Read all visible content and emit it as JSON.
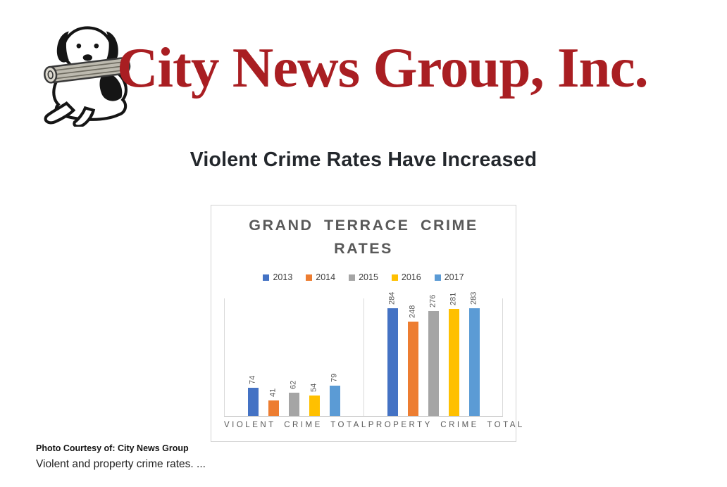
{
  "logo": {
    "company_name": "City News Group, Inc.",
    "icon": "dog-with-newspaper",
    "brand_color": "#A91E22"
  },
  "headline": "Violent Crime Rates Have Increased",
  "chart_data": {
    "type": "bar",
    "title": "GRAND TERRACE CRIME RATES",
    "categories": [
      "VIOLENT CRIME TOTAL",
      "PROPERTY CRIME TOTAL"
    ],
    "series": [
      {
        "name": "2013",
        "color": "#4472C4",
        "values": [
          74,
          284
        ]
      },
      {
        "name": "2014",
        "color": "#ED7D31",
        "values": [
          41,
          248
        ]
      },
      {
        "name": "2015",
        "color": "#A5A5A5",
        "values": [
          62,
          276
        ]
      },
      {
        "name": "2016",
        "color": "#FFC000",
        "values": [
          54,
          281
        ]
      },
      {
        "name": "2017",
        "color": "#5B9BD5",
        "values": [
          79,
          283
        ]
      }
    ],
    "ylim": [
      0,
      300
    ],
    "grid": false,
    "legend_position": "top",
    "data_labels": "rotated-90",
    "title_color": "#595959",
    "axis_label_color": "#595959"
  },
  "caption": {
    "credit_line": "Photo Courtesy of: City News Group",
    "description_line": "Violent and property crime rates. ..."
  }
}
